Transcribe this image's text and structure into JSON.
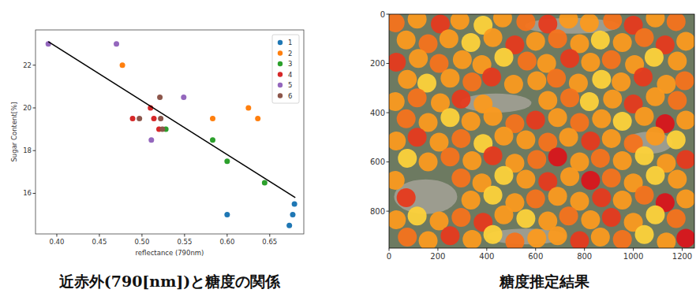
{
  "chart_data": [
    {
      "type": "scatter",
      "title": "近赤外(790[nm])と糖度の関係",
      "xlabel": "reflectance (790nm)",
      "ylabel": "Sugar Content[%]",
      "xlim": [
        0.375,
        0.69
      ],
      "ylim": [
        14.1,
        23.65
      ],
      "xticks": [
        {
          "value": 0.4,
          "label": "0.40"
        },
        0.45,
        {
          "value": 0.5,
          "label": "0.50"
        },
        0.55,
        {
          "value": 0.6,
          "label": "0.60"
        },
        0.65
      ],
      "yticks": [
        16,
        18,
        20,
        22
      ],
      "legend": "upper right",
      "marker": "circle",
      "series": [
        {
          "name": "1",
          "color": "#1f77b4",
          "x": [
            0.6,
            0.673,
            0.677,
            0.679
          ],
          "values": [
            15.0,
            14.5,
            15.0,
            15.5
          ]
        },
        {
          "name": "2",
          "color": "#ff7f0e",
          "x": [
            0.477,
            0.583,
            0.625,
            0.636
          ],
          "values": [
            22.0,
            19.5,
            20.0,
            19.5
          ]
        },
        {
          "name": "3",
          "color": "#2ca02c",
          "x": [
            0.528,
            0.583,
            0.6,
            0.644
          ],
          "values": [
            19.0,
            18.5,
            17.5,
            16.5
          ]
        },
        {
          "name": "4",
          "color": "#d62728",
          "x": [
            0.489,
            0.51,
            0.514,
            0.52
          ],
          "values": [
            19.5,
            20.0,
            19.5,
            19.0
          ]
        },
        {
          "name": "5",
          "color": "#9467bd",
          "x": [
            0.39,
            0.47,
            0.549,
            0.511
          ],
          "values": [
            23.0,
            23.0,
            20.5,
            18.5
          ]
        },
        {
          "name": "6",
          "color": "#8c564b",
          "x": [
            0.497,
            0.521,
            0.522,
            0.524
          ],
          "values": [
            19.5,
            20.5,
            19.5,
            19.0
          ]
        },
        {
          "type": "line",
          "color": "#000000",
          "x": [
            0.39,
            0.68
          ],
          "values": [
            23.1,
            15.8
          ]
        }
      ]
    },
    {
      "type": "scatter",
      "title": "糖度推定結果",
      "xlim": [
        0,
        1250
      ],
      "ylim": [
        950,
        0
      ],
      "xticks": [
        0,
        200,
        400,
        600,
        800,
        1000,
        1200
      ],
      "yticks": [
        0,
        200,
        400,
        600,
        800
      ],
      "marker": "circle",
      "x": [
        25,
        115,
        210,
        290,
        385,
        465,
        560,
        650,
        735,
        820,
        915,
        1000,
        1090,
        1175,
        70,
        160,
        245,
        335,
        425,
        515,
        600,
        690,
        780,
        865,
        955,
        1045,
        1130,
        1215,
        30,
        120,
        205,
        300,
        380,
        470,
        565,
        645,
        740,
        825,
        910,
        1005,
        1085,
        1180,
        75,
        155,
        250,
        340,
        420,
        510,
        605,
        685,
        775,
        870,
        950,
        1040,
        1135,
        1210,
        25,
        115,
        210,
        295,
        385,
        650,
        740,
        820,
        915,
        1000,
        1090,
        1180,
        70,
        160,
        250,
        335,
        425,
        515,
        600,
        690,
        780,
        870,
        955,
        1045,
        1130,
        1215,
        30,
        115,
        205,
        295,
        385,
        470,
        560,
        650,
        735,
        825,
        910,
        1000,
        1090,
        1175,
        75,
        160,
        250,
        340,
        425,
        515,
        605,
        690,
        780,
        865,
        955,
        1045,
        1135,
        1215,
        25,
        295,
        380,
        470,
        560,
        650,
        740,
        825,
        910,
        1000,
        1090,
        1180,
        70,
        335,
        425,
        515,
        600,
        690,
        780,
        870,
        955,
        1045,
        1130,
        1215,
        30,
        115,
        205,
        295,
        385,
        470,
        560,
        650,
        735,
        825,
        910,
        1000,
        1090,
        1175,
        75,
        160,
        250,
        340,
        425,
        515,
        605,
        690,
        780,
        865,
        955,
        1045,
        1135,
        1215
      ],
      "values": [
        35,
        20,
        40,
        25,
        45,
        15,
        30,
        40,
        20,
        35,
        25,
        45,
        15,
        30,
        105,
        120,
        100,
        115,
        95,
        125,
        110,
        100,
        120,
        105,
        115,
        95,
        125,
        110,
        195,
        180,
        200,
        185,
        205,
        175,
        190,
        200,
        180,
        195,
        185,
        205,
        175,
        190,
        265,
        280,
        260,
        275,
        255,
        285,
        270,
        260,
        280,
        265,
        275,
        255,
        285,
        270,
        355,
        340,
        360,
        345,
        365,
        350,
        340,
        355,
        345,
        365,
        335,
        350,
        425,
        440,
        420,
        435,
        415,
        445,
        430,
        420,
        440,
        425,
        435,
        415,
        445,
        430,
        515,
        500,
        520,
        505,
        525,
        495,
        510,
        520,
        500,
        515,
        505,
        525,
        495,
        510,
        585,
        600,
        580,
        595,
        575,
        605,
        590,
        580,
        600,
        585,
        595,
        575,
        605,
        590,
        675,
        665,
        685,
        655,
        670,
        680,
        660,
        675,
        665,
        685,
        655,
        670,
        745,
        755,
        735,
        765,
        750,
        740,
        760,
        745,
        755,
        735,
        765,
        750,
        835,
        820,
        840,
        825,
        845,
        815,
        830,
        840,
        820,
        835,
        825,
        845,
        815,
        830,
        905,
        920,
        900,
        915,
        895,
        925,
        910,
        900,
        920,
        905,
        915,
        895,
        925,
        910
      ],
      "colors": [
        "#f5731c",
        "#fb9a1f",
        "#e63a1e",
        "#fb9a1f",
        "#fdd23a",
        "#fb9a1f",
        "#f5731c",
        "#e63a1e",
        "#fb9a1f",
        "#fb9a1f",
        "#f5731c",
        "#e63a1e",
        "#fb9a1f",
        "#f5731c",
        "#fb9a1f",
        "#f5731c",
        "#fb9a1f",
        "#fdd23a",
        "#fb9a1f",
        "#e63a1e",
        "#fb9a1f",
        "#f5731c",
        "#fb9a1f",
        "#fdd23a",
        "#fb9a1f",
        "#f5731c",
        "#e63a1e",
        "#fb9a1f",
        "#e63a1e",
        "#fb9a1f",
        "#f5731c",
        "#fb9a1f",
        "#fb9a1f",
        "#fdd23a",
        "#f5731c",
        "#fb9a1f",
        "#e63a1e",
        "#fb9a1f",
        "#f5731c",
        "#fb9a1f",
        "#fdd23a",
        "#fb9a1f",
        "#fb9a1f",
        "#fdd23a",
        "#fb9a1f",
        "#f5731c",
        "#e63a1e",
        "#fb9a1f",
        "#fb9a1f",
        "#f5731c",
        "#fb9a1f",
        "#fdd23a",
        "#fb9a1f",
        "#e63a1e",
        "#fb9a1f",
        "#f5731c",
        "#fb9a1f",
        "#f5731c",
        "#fb9a1f",
        "#e63a1e",
        "#fb9a1f",
        "#fb9a1f",
        "#f5731c",
        "#fdd23a",
        "#fb9a1f",
        "#e63a1e",
        "#fb9a1f",
        "#f5731c",
        "#f5731c",
        "#fb9a1f",
        "#fdd23a",
        "#fb9a1f",
        "#fb9a1f",
        "#f5731c",
        "#e63a1e",
        "#fb9a1f",
        "#f5731c",
        "#fb9a1f",
        "#fdd23a",
        "#fb9a1f",
        "#d9151b",
        "#fb9a1f",
        "#fb9a1f",
        "#e63a1e",
        "#fb9a1f",
        "#f5731c",
        "#fdd23a",
        "#fb9a1f",
        "#fb9a1f",
        "#f5731c",
        "#fb9a1f",
        "#e63a1e",
        "#fb9a1f",
        "#f5731c",
        "#fb9a1f",
        "#fdd23a",
        "#fdd23a",
        "#fb9a1f",
        "#f5731c",
        "#fb9a1f",
        "#e63a1e",
        "#fb9a1f",
        "#f5731c",
        "#d9151b",
        "#fb9a1f",
        "#f5731c",
        "#fb9a1f",
        "#fdd23a",
        "#fb9a1f",
        "#e63a1e",
        "#fb9a1f",
        "#f5731c",
        "#fb9a1f",
        "#fdd23a",
        "#fb9a1f",
        "#e63a1e",
        "#fb9a1f",
        "#d9151b",
        "#f5731c",
        "#fb9a1f",
        "#fdd23a",
        "#fb9a1f",
        "#e63a1e",
        "#fb9a1f",
        "#fdd23a",
        "#fb9a1f",
        "#f5731c",
        "#fb9a1f",
        "#fb9a1f",
        "#e63a1e",
        "#fb9a1f",
        "#f5731c",
        "#d9151b",
        "#fb9a1f",
        "#fb9a1f",
        "#fdd23a",
        "#fb9a1f",
        "#f5731c",
        "#e63a1e",
        "#fb9a1f",
        "#fdd23a",
        "#fb9a1f",
        "#f5731c",
        "#fb9a1f",
        "#e63a1e",
        "#fb9a1f",
        "#fdd23a",
        "#f5731c",
        "#f5731c",
        "#fb9a1f",
        "#e63a1e",
        "#fb9a1f",
        "#fdd23a",
        "#f5731c",
        "#fb9a1f",
        "#fb9a1f",
        "#e63a1e",
        "#fb9a1f",
        "#f5731c",
        "#fdd23a",
        "#fb9a1f",
        "#d9151b"
      ]
    }
  ]
}
